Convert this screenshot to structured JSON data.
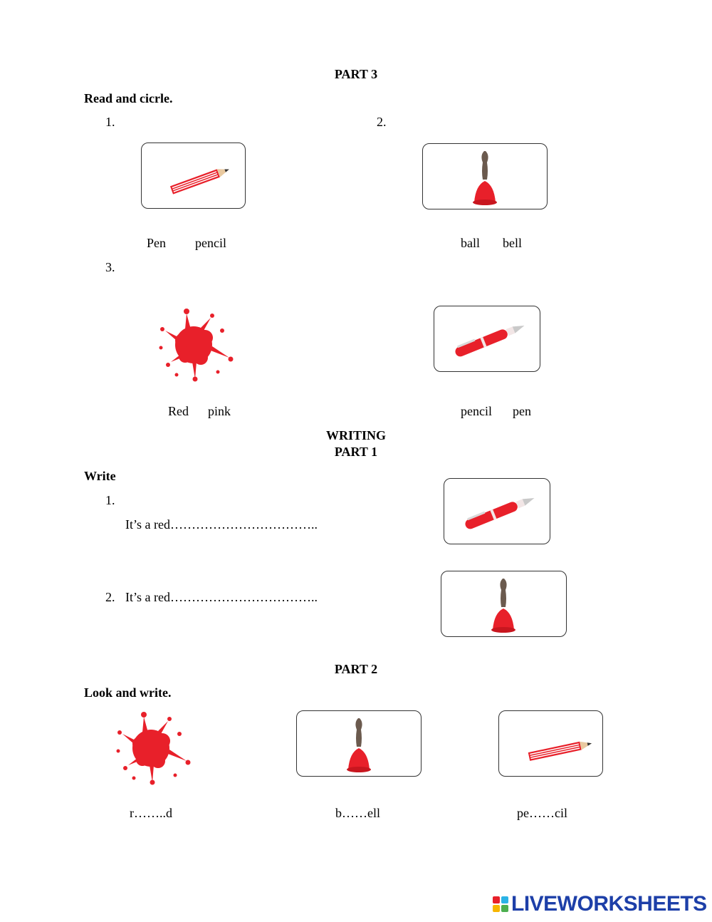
{
  "part3": {
    "title": "PART 3",
    "instruction": "Read and cicrle.",
    "q1": {
      "num": "1.",
      "option_a": "Pen",
      "option_b": "pencil",
      "image": "pencil-icon"
    },
    "q2": {
      "num": "2.",
      "option_a": "ball",
      "option_b": "bell",
      "image": "bell-icon"
    },
    "q3": {
      "num": "3.",
      "option_a": "Red",
      "option_b": "pink",
      "image": "red-splash-icon"
    },
    "q4": {
      "option_a": "pencil",
      "option_b": "pen",
      "image": "pen-icon"
    }
  },
  "writing": {
    "title": "WRITING",
    "part_title": "PART 1",
    "instruction": "Write",
    "q1": {
      "num": "1.",
      "sentence": "It’s a red……………………………..",
      "image": "pen-icon"
    },
    "q2": {
      "num": "2.",
      "sentence": "It’s a red……………………………..",
      "image": "bell-icon"
    }
  },
  "part2": {
    "title": "PART 2",
    "instruction": "Look and write.",
    "items": [
      {
        "word": "r……..d",
        "image": "red-splash-icon"
      },
      {
        "word": "b……ell",
        "image": "bell-icon"
      },
      {
        "word": "pe……cil",
        "image": "pencil-icon"
      }
    ]
  },
  "branding": {
    "logo_text": "LIVEWORKSHEETS"
  },
  "colors": {
    "accent_red": "#e8202a",
    "logo_blue": "#1d3fa8",
    "bell_handle": "#6b5a4e"
  }
}
